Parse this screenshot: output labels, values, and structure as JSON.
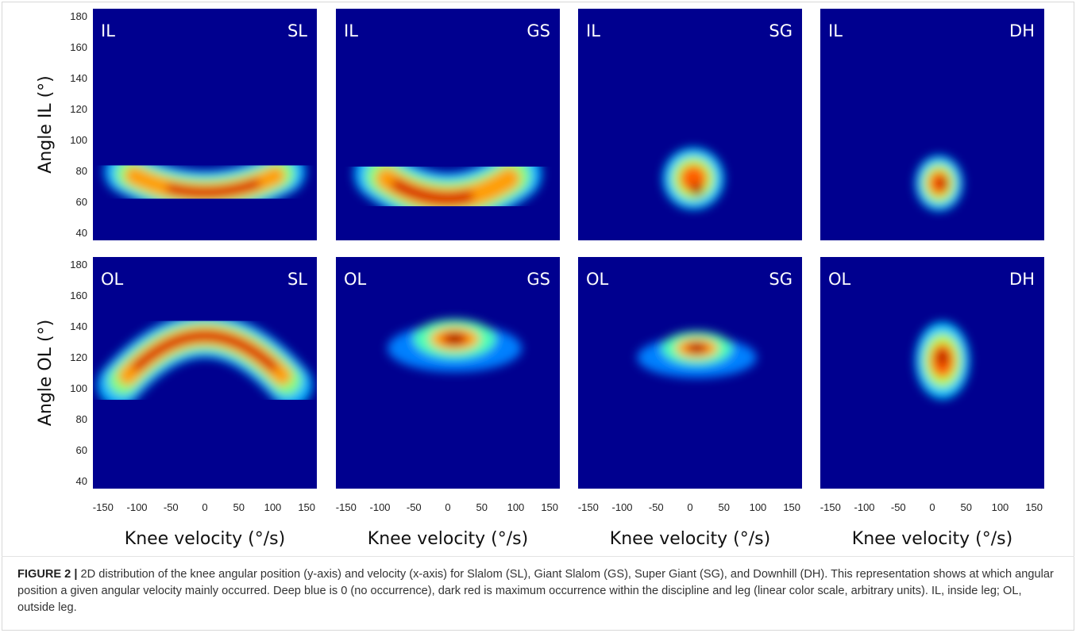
{
  "colors": {
    "background": "#00008f",
    "scale": [
      "#00008f",
      "#0000ff",
      "#00ffff",
      "#ffff00",
      "#ff0000",
      "#800000"
    ]
  },
  "chart_data": [
    {
      "type": "heatmap",
      "leg": "IL",
      "discipline": "SL",
      "xlabel": "",
      "ylabel": "Angle IL (°)",
      "xlim": [
        -165,
        165
      ],
      "ylim": [
        35,
        185
      ],
      "xticks": [
        -150,
        -100,
        -50,
        0,
        50,
        100,
        150
      ],
      "yticks": [
        40,
        60,
        80,
        100,
        120,
        140,
        160,
        180
      ],
      "pattern": "arc",
      "arc": {
        "apex_y": 66,
        "curvature": 0.001,
        "thickness": 11,
        "x_extent": 110,
        "peak_range": [
          -50,
          75
        ]
      }
    },
    {
      "type": "heatmap",
      "leg": "IL",
      "discipline": "GS",
      "xlabel": "",
      "ylabel": "",
      "xlim": [
        -165,
        165
      ],
      "ylim": [
        35,
        185
      ],
      "xticks": [
        -150,
        -100,
        -50,
        0,
        50,
        100,
        150
      ],
      "yticks": [],
      "pattern": "arc",
      "arc": {
        "apex_y": 62,
        "curvature": 0.0016,
        "thickness": 13,
        "x_extent": 95,
        "peak_range": [
          -75,
          30
        ]
      }
    },
    {
      "type": "heatmap",
      "leg": "IL",
      "discipline": "SG",
      "xlabel": "",
      "ylabel": "",
      "xlim": [
        -165,
        165
      ],
      "ylim": [
        35,
        185
      ],
      "xticks": [
        -150,
        -100,
        -50,
        0,
        50,
        100,
        150
      ],
      "yticks": [],
      "pattern": "blob",
      "blob": {
        "center": [
          5,
          75
        ],
        "sx": 45,
        "sy": 20,
        "peak": [
          10,
          68
        ]
      }
    },
    {
      "type": "heatmap",
      "leg": "IL",
      "discipline": "DH",
      "xlabel": "",
      "ylabel": "",
      "xlim": [
        -165,
        165
      ],
      "ylim": [
        35,
        185
      ],
      "xticks": [
        -150,
        -100,
        -50,
        0,
        50,
        100,
        150
      ],
      "yticks": [],
      "pattern": "blob",
      "blob": {
        "center": [
          10,
          72
        ],
        "sx": 35,
        "sy": 18,
        "peak": [
          15,
          72
        ]
      }
    },
    {
      "type": "heatmap",
      "leg": "OL",
      "discipline": "SL",
      "xlabel": "Knee velocity (°/s)",
      "ylabel": "Angle OL (°)",
      "xlim": [
        -165,
        165
      ],
      "ylim": [
        35,
        185
      ],
      "xticks": [
        -150,
        -100,
        -50,
        0,
        50,
        100,
        150
      ],
      "yticks": [
        40,
        60,
        80,
        100,
        120,
        140,
        160,
        180
      ],
      "pattern": "arc",
      "arc": {
        "apex_y": 134,
        "curvature": -0.002,
        "thickness": 11,
        "x_extent": 120,
        "peak_range": [
          -100,
          100
        ]
      }
    },
    {
      "type": "heatmap",
      "leg": "OL",
      "discipline": "GS",
      "xlabel": "Knee velocity (°/s)",
      "ylabel": "",
      "xlim": [
        -165,
        165
      ],
      "ylim": [
        35,
        185
      ],
      "xticks": [
        -150,
        -100,
        -50,
        0,
        50,
        100,
        150
      ],
      "yticks": [],
      "pattern": "peak",
      "peak": {
        "center": [
          10,
          132
        ],
        "spread": [
          45,
          14
        ]
      }
    },
    {
      "type": "heatmap",
      "leg": "OL",
      "discipline": "SG",
      "xlabel": "Knee velocity (°/s)",
      "ylabel": "",
      "xlim": [
        -165,
        165
      ],
      "ylim": [
        35,
        185
      ],
      "xticks": [
        -150,
        -100,
        -50,
        0,
        50,
        100,
        150
      ],
      "yticks": [],
      "pattern": "peak",
      "peak": {
        "center": [
          10,
          126
        ],
        "spread": [
          40,
          12
        ]
      }
    },
    {
      "type": "heatmap",
      "leg": "OL",
      "discipline": "DH",
      "xlabel": "Knee velocity (°/s)",
      "ylabel": "",
      "xlim": [
        -165,
        165
      ],
      "ylim": [
        35,
        185
      ],
      "xticks": [
        -150,
        -100,
        -50,
        0,
        50,
        100,
        150
      ],
      "yticks": [],
      "pattern": "blob",
      "blob": {
        "center": [
          15,
          118
        ],
        "sx": 40,
        "sy": 25,
        "peak": [
          15,
          120
        ]
      }
    }
  ],
  "caption": {
    "lead": "FIGURE 2 |",
    "text": " 2D distribution of the knee angular position (y-axis) and velocity (x-axis) for Slalom (SL), Giant Slalom (GS), Super Giant (SG), and Downhill (DH). This representation shows at which angular position a given angular velocity mainly occurred. Deep blue is 0 (no occurrence), dark red is maximum occurrence within the discipline and leg (linear color scale, arbitrary units). IL, inside leg; OL, outside leg."
  }
}
